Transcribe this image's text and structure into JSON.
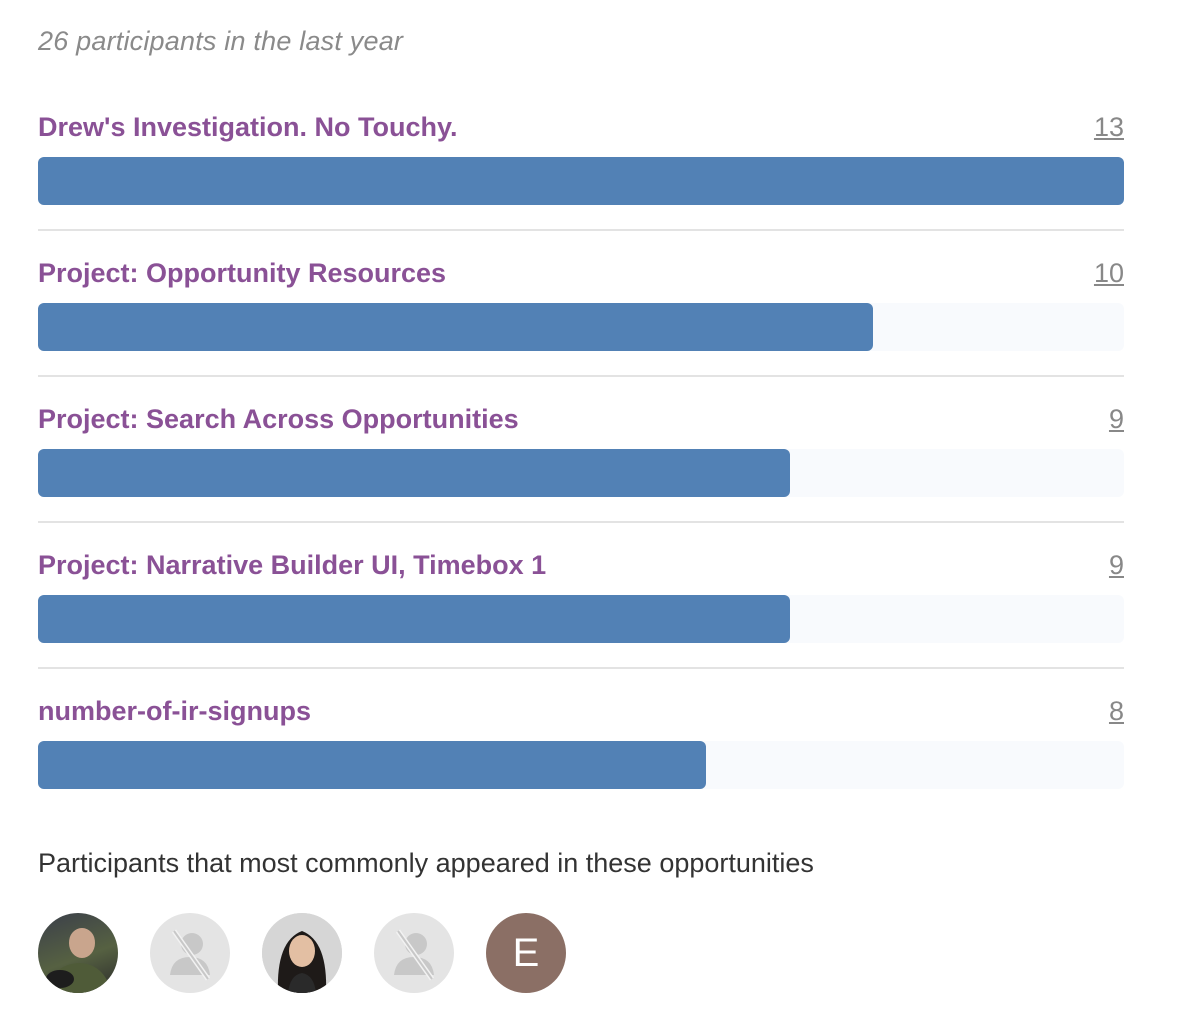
{
  "summary": "26 participants in the last year",
  "opportunities": [
    {
      "name": "Drew's Investigation. No Touchy.",
      "count": "13",
      "value": 13
    },
    {
      "name": "Project: Opportunity Resources",
      "count": "10",
      "value": 10
    },
    {
      "name": "Project: Search Across Opportunities",
      "count": "9",
      "value": 9
    },
    {
      "name": "Project: Narrative Builder UI, Timebox 1",
      "count": "9",
      "value": 9
    },
    {
      "name": "number-of-ir-signups",
      "count": "8",
      "value": 8
    }
  ],
  "max_value": 13,
  "participants_title": "Participants that most commonly appeared in these opportunities",
  "avatars": [
    {
      "type": "photo",
      "icon": "user-photo"
    },
    {
      "type": "placeholder",
      "icon": "no-user-icon"
    },
    {
      "type": "photo",
      "icon": "user-photo"
    },
    {
      "type": "placeholder",
      "icon": "no-user-icon"
    },
    {
      "type": "initial",
      "initial": "E"
    }
  ],
  "colors": {
    "bar": "#5281b5",
    "link": "#8a5196",
    "avatar_initial_bg": "#8b6f65"
  }
}
